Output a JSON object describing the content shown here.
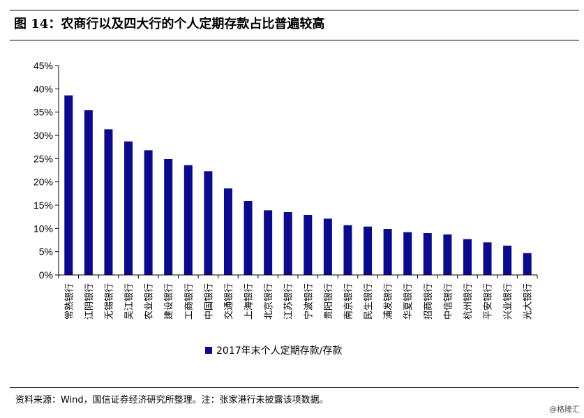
{
  "figure": {
    "title": "图 14：农商行以及四大行的个人定期存款占比普遍较高",
    "source": "资料来源：Wind，国信证券经济研究所整理。注：张家港行未披露该项数据。",
    "watermark": "@格隆汇"
  },
  "chart_data": {
    "type": "bar",
    "categories": [
      "常熟银行",
      "江阴银行",
      "无锡银行",
      "吴江银行",
      "农业银行",
      "建设银行",
      "工商银行",
      "中国银行",
      "交通银行",
      "上海银行",
      "北京银行",
      "江苏银行",
      "宁波银行",
      "贵阳银行",
      "南京银行",
      "民生银行",
      "浦发银行",
      "华夏银行",
      "招商银行",
      "中信银行",
      "杭州银行",
      "平安银行",
      "兴业银行",
      "光大银行"
    ],
    "series": [
      {
        "name": "2017年末个人定期存款/存款",
        "values": [
          0.386,
          0.354,
          0.313,
          0.287,
          0.268,
          0.249,
          0.236,
          0.223,
          0.186,
          0.159,
          0.139,
          0.135,
          0.129,
          0.121,
          0.107,
          0.104,
          0.099,
          0.092,
          0.09,
          0.087,
          0.077,
          0.07,
          0.063,
          0.047
        ]
      }
    ],
    "yticks": [
      "0%",
      "5%",
      "10%",
      "15%",
      "20%",
      "25%",
      "30%",
      "35%",
      "40%",
      "45%"
    ],
    "ylim": [
      0,
      0.45
    ],
    "bar_color": "#0B0B8C",
    "legend_position": "bottom",
    "grid": false
  }
}
